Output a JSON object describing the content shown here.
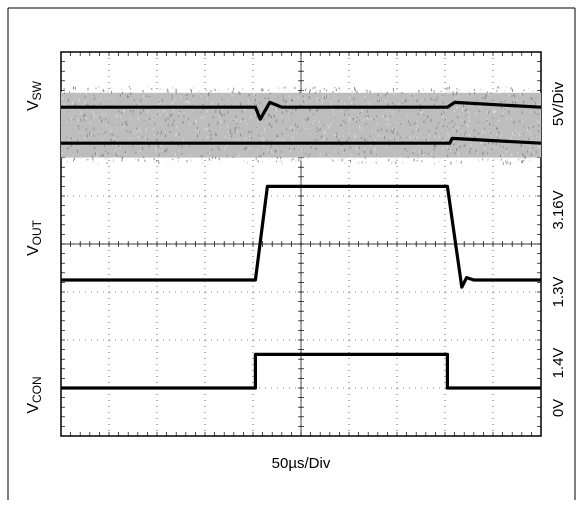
{
  "chart_data": {
    "type": "line",
    "title": "",
    "time_scale": "50µs/Div",
    "xlim": [
      0,
      10
    ],
    "ylim": [
      0,
      8
    ],
    "grid": true,
    "channels": [
      {
        "name_main": "V",
        "name_sub": "SW",
        "scale_labels": [
          "5V/Div"
        ],
        "noisy": true,
        "series": [
          {
            "name": "upper",
            "x": [
              0,
              4.05,
              4.15,
              4.35,
              4.6,
              8.05,
              8.2,
              10
            ],
            "y": [
              6.85,
              6.85,
              6.6,
              6.95,
              6.85,
              6.85,
              6.95,
              6.85
            ]
          },
          {
            "name": "lower",
            "x": [
              0,
              4.05,
              4.1,
              8.1,
              8.15,
              10
            ],
            "y": [
              6.1,
              6.1,
              6.1,
              6.1,
              6.2,
              6.1
            ]
          }
        ]
      },
      {
        "name_main": "V",
        "name_sub": "OUT",
        "scale_labels": [
          "3.16V",
          "1.3V"
        ],
        "noisy": false,
        "series": [
          {
            "name": "vout",
            "x": [
              0,
              4.05,
              4.3,
              8.05,
              8.35,
              8.45,
              8.6,
              10
            ],
            "y": [
              3.25,
              3.25,
              5.2,
              5.2,
              3.1,
              3.3,
              3.25,
              3.25
            ]
          }
        ]
      },
      {
        "name_main": "V",
        "name_sub": "CON",
        "scale_labels": [
          "1.4V",
          "0V"
        ],
        "noisy": false,
        "series": [
          {
            "name": "vcon",
            "x": [
              0,
              4.05,
              4.05,
              8.05,
              8.05,
              10
            ],
            "y": [
              1.0,
              1.0,
              1.7,
              1.7,
              1.0,
              1.0
            ]
          }
        ]
      }
    ]
  }
}
